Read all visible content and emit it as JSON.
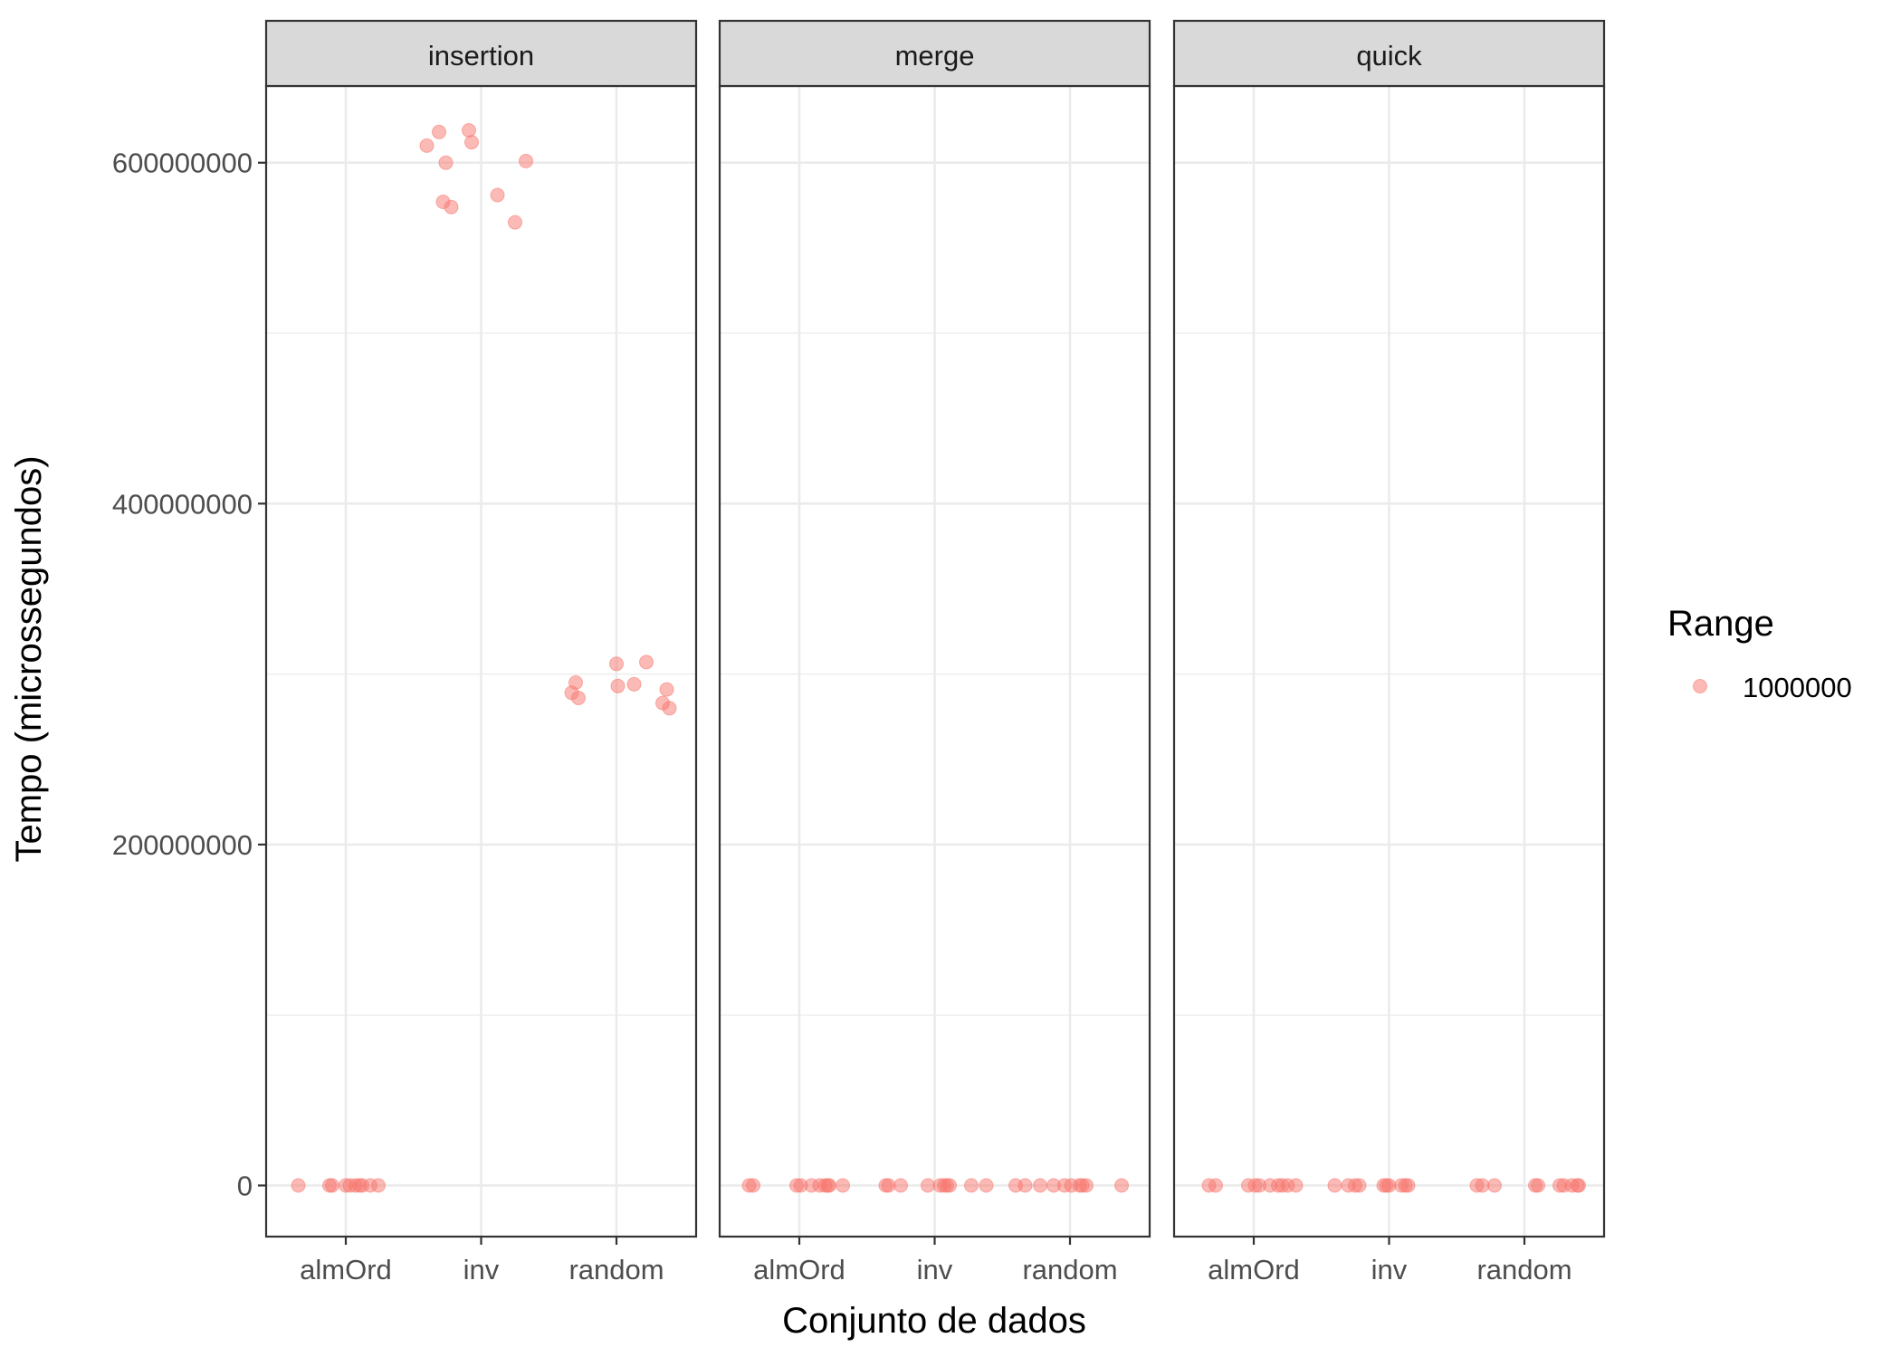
{
  "chart_data": {
    "type": "scatter",
    "facet_by": "algorithm",
    "panels": [
      "insertion",
      "merge",
      "quick"
    ],
    "categories": [
      "almOrd",
      "inv",
      "random"
    ],
    "xlabel": "Conjunto de dados",
    "ylabel": "Tempo (microssegundos)",
    "ylim": [
      -30000000,
      645000000
    ],
    "yticks": [
      0,
      200000000,
      400000000,
      600000000
    ],
    "ytick_labels": [
      "0",
      "200000000",
      "400000000",
      "600000000"
    ],
    "grid": true,
    "legend": {
      "title": "Range",
      "position": "right",
      "entries": [
        "1000000"
      ]
    },
    "point_color": "#F8766D",
    "series": [
      {
        "name": "1000000",
        "points": [
          {
            "panel": "insertion",
            "category": "almOrd",
            "jitter": -0.35,
            "y": 0
          },
          {
            "panel": "insertion",
            "category": "almOrd",
            "jitter": -0.12,
            "y": 0
          },
          {
            "panel": "insertion",
            "category": "almOrd",
            "jitter": -0.1,
            "y": 0
          },
          {
            "panel": "insertion",
            "category": "almOrd",
            "jitter": 0.0,
            "y": 0
          },
          {
            "panel": "insertion",
            "category": "almOrd",
            "jitter": 0.03,
            "y": 0
          },
          {
            "panel": "insertion",
            "category": "almOrd",
            "jitter": 0.07,
            "y": 0
          },
          {
            "panel": "insertion",
            "category": "almOrd",
            "jitter": 0.1,
            "y": 0
          },
          {
            "panel": "insertion",
            "category": "almOrd",
            "jitter": 0.12,
            "y": 0
          },
          {
            "panel": "insertion",
            "category": "almOrd",
            "jitter": 0.18,
            "y": 0
          },
          {
            "panel": "insertion",
            "category": "almOrd",
            "jitter": 0.24,
            "y": 0
          },
          {
            "panel": "insertion",
            "category": "inv",
            "jitter": -0.4,
            "y": 610000000
          },
          {
            "panel": "insertion",
            "category": "inv",
            "jitter": -0.31,
            "y": 618000000
          },
          {
            "panel": "insertion",
            "category": "inv",
            "jitter": -0.26,
            "y": 600000000
          },
          {
            "panel": "insertion",
            "category": "inv",
            "jitter": -0.28,
            "y": 577000000
          },
          {
            "panel": "insertion",
            "category": "inv",
            "jitter": -0.22,
            "y": 574000000
          },
          {
            "panel": "insertion",
            "category": "inv",
            "jitter": -0.09,
            "y": 619000000
          },
          {
            "panel": "insertion",
            "category": "inv",
            "jitter": -0.07,
            "y": 612000000
          },
          {
            "panel": "insertion",
            "category": "inv",
            "jitter": 0.12,
            "y": 581000000
          },
          {
            "panel": "insertion",
            "category": "inv",
            "jitter": 0.25,
            "y": 565000000
          },
          {
            "panel": "insertion",
            "category": "inv",
            "jitter": 0.33,
            "y": 601000000
          },
          {
            "panel": "insertion",
            "category": "random",
            "jitter": -0.33,
            "y": 289000000
          },
          {
            "panel": "insertion",
            "category": "random",
            "jitter": -0.3,
            "y": 295000000
          },
          {
            "panel": "insertion",
            "category": "random",
            "jitter": -0.28,
            "y": 286000000
          },
          {
            "panel": "insertion",
            "category": "random",
            "jitter": 0.0,
            "y": 306000000
          },
          {
            "panel": "insertion",
            "category": "random",
            "jitter": 0.01,
            "y": 293000000
          },
          {
            "panel": "insertion",
            "category": "random",
            "jitter": 0.13,
            "y": 294000000
          },
          {
            "panel": "insertion",
            "category": "random",
            "jitter": 0.22,
            "y": 307000000
          },
          {
            "panel": "insertion",
            "category": "random",
            "jitter": 0.34,
            "y": 283000000
          },
          {
            "panel": "insertion",
            "category": "random",
            "jitter": 0.37,
            "y": 291000000
          },
          {
            "panel": "insertion",
            "category": "random",
            "jitter": 0.39,
            "y": 280000000
          },
          {
            "panel": "merge",
            "category": "almOrd",
            "jitter": -0.37,
            "y": 0
          },
          {
            "panel": "merge",
            "category": "almOrd",
            "jitter": -0.34,
            "y": 0
          },
          {
            "panel": "merge",
            "category": "almOrd",
            "jitter": -0.02,
            "y": 0
          },
          {
            "panel": "merge",
            "category": "almOrd",
            "jitter": 0.01,
            "y": 0
          },
          {
            "panel": "merge",
            "category": "almOrd",
            "jitter": 0.09,
            "y": 0
          },
          {
            "panel": "merge",
            "category": "almOrd",
            "jitter": 0.15,
            "y": 0
          },
          {
            "panel": "merge",
            "category": "almOrd",
            "jitter": 0.19,
            "y": 0
          },
          {
            "panel": "merge",
            "category": "almOrd",
            "jitter": 0.21,
            "y": 0
          },
          {
            "panel": "merge",
            "category": "almOrd",
            "jitter": 0.22,
            "y": 0
          },
          {
            "panel": "merge",
            "category": "almOrd",
            "jitter": 0.32,
            "y": 0
          },
          {
            "panel": "merge",
            "category": "inv",
            "jitter": -0.36,
            "y": 0
          },
          {
            "panel": "merge",
            "category": "inv",
            "jitter": -0.34,
            "y": 0
          },
          {
            "panel": "merge",
            "category": "inv",
            "jitter": -0.25,
            "y": 0
          },
          {
            "panel": "merge",
            "category": "inv",
            "jitter": -0.05,
            "y": 0
          },
          {
            "panel": "merge",
            "category": "inv",
            "jitter": 0.04,
            "y": 0
          },
          {
            "panel": "merge",
            "category": "inv",
            "jitter": 0.07,
            "y": 0
          },
          {
            "panel": "merge",
            "category": "inv",
            "jitter": 0.09,
            "y": 0
          },
          {
            "panel": "merge",
            "category": "inv",
            "jitter": 0.11,
            "y": 0
          },
          {
            "panel": "merge",
            "category": "inv",
            "jitter": 0.27,
            "y": 0
          },
          {
            "panel": "merge",
            "category": "inv",
            "jitter": 0.38,
            "y": 0
          },
          {
            "panel": "merge",
            "category": "random",
            "jitter": -0.4,
            "y": 0
          },
          {
            "panel": "merge",
            "category": "random",
            "jitter": -0.33,
            "y": 0
          },
          {
            "panel": "merge",
            "category": "random",
            "jitter": -0.22,
            "y": 0
          },
          {
            "panel": "merge",
            "category": "random",
            "jitter": -0.12,
            "y": 0
          },
          {
            "panel": "merge",
            "category": "random",
            "jitter": -0.04,
            "y": 0
          },
          {
            "panel": "merge",
            "category": "random",
            "jitter": 0.01,
            "y": 0
          },
          {
            "panel": "merge",
            "category": "random",
            "jitter": 0.07,
            "y": 0
          },
          {
            "panel": "merge",
            "category": "random",
            "jitter": 0.09,
            "y": 0
          },
          {
            "panel": "merge",
            "category": "random",
            "jitter": 0.12,
            "y": 0
          },
          {
            "panel": "merge",
            "category": "random",
            "jitter": 0.38,
            "y": 0
          },
          {
            "panel": "quick",
            "category": "almOrd",
            "jitter": -0.33,
            "y": 0
          },
          {
            "panel": "quick",
            "category": "almOrd",
            "jitter": -0.28,
            "y": 0
          },
          {
            "panel": "quick",
            "category": "almOrd",
            "jitter": -0.04,
            "y": 0
          },
          {
            "panel": "quick",
            "category": "almOrd",
            "jitter": 0.01,
            "y": 0
          },
          {
            "panel": "quick",
            "category": "almOrd",
            "jitter": 0.04,
            "y": 0
          },
          {
            "panel": "quick",
            "category": "almOrd",
            "jitter": 0.12,
            "y": 0
          },
          {
            "panel": "quick",
            "category": "almOrd",
            "jitter": 0.18,
            "y": 0
          },
          {
            "panel": "quick",
            "category": "almOrd",
            "jitter": 0.21,
            "y": 0
          },
          {
            "panel": "quick",
            "category": "almOrd",
            "jitter": 0.25,
            "y": 0
          },
          {
            "panel": "quick",
            "category": "almOrd",
            "jitter": 0.31,
            "y": 0
          },
          {
            "panel": "quick",
            "category": "inv",
            "jitter": -0.4,
            "y": 0
          },
          {
            "panel": "quick",
            "category": "inv",
            "jitter": -0.3,
            "y": 0
          },
          {
            "panel": "quick",
            "category": "inv",
            "jitter": -0.25,
            "y": 0
          },
          {
            "panel": "quick",
            "category": "inv",
            "jitter": -0.22,
            "y": 0
          },
          {
            "panel": "quick",
            "category": "inv",
            "jitter": -0.04,
            "y": 0
          },
          {
            "panel": "quick",
            "category": "inv",
            "jitter": -0.02,
            "y": 0
          },
          {
            "panel": "quick",
            "category": "inv",
            "jitter": 0.0,
            "y": 0
          },
          {
            "panel": "quick",
            "category": "inv",
            "jitter": 0.09,
            "y": 0
          },
          {
            "panel": "quick",
            "category": "inv",
            "jitter": 0.12,
            "y": 0
          },
          {
            "panel": "quick",
            "category": "inv",
            "jitter": 0.14,
            "y": 0
          },
          {
            "panel": "quick",
            "category": "random",
            "jitter": -0.35,
            "y": 0
          },
          {
            "panel": "quick",
            "category": "random",
            "jitter": -0.31,
            "y": 0
          },
          {
            "panel": "quick",
            "category": "random",
            "jitter": -0.22,
            "y": 0
          },
          {
            "panel": "quick",
            "category": "random",
            "jitter": 0.08,
            "y": 0
          },
          {
            "panel": "quick",
            "category": "random",
            "jitter": 0.1,
            "y": 0
          },
          {
            "panel": "quick",
            "category": "random",
            "jitter": 0.26,
            "y": 0
          },
          {
            "panel": "quick",
            "category": "random",
            "jitter": 0.29,
            "y": 0
          },
          {
            "panel": "quick",
            "category": "random",
            "jitter": 0.35,
            "y": 0
          },
          {
            "panel": "quick",
            "category": "random",
            "jitter": 0.39,
            "y": 0
          },
          {
            "panel": "quick",
            "category": "random",
            "jitter": 0.4,
            "y": 0
          }
        ]
      }
    ]
  }
}
